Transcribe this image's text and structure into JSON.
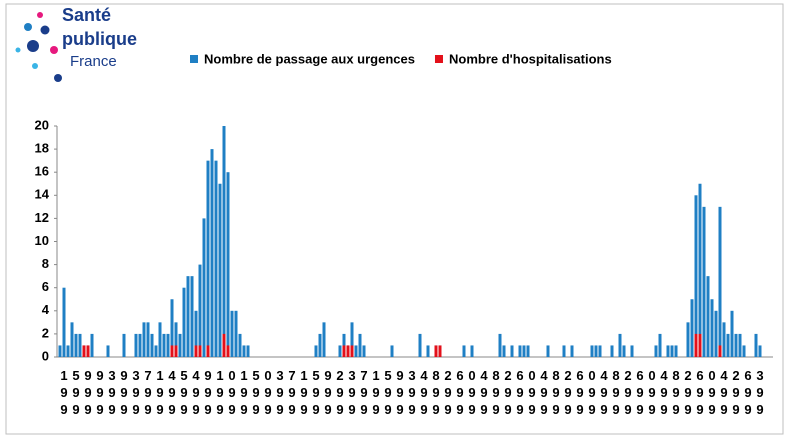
{
  "brand": {
    "line1": "Santé",
    "line2": "publique",
    "line3": "France"
  },
  "chart_data": {
    "type": "bar",
    "overlap": true,
    "series": [
      {
        "name": "Nombre de passage aux urgences",
        "color": "#1f7fc4",
        "values": [
          1,
          6,
          1,
          3,
          2,
          2,
          1,
          1,
          2,
          0,
          0,
          0,
          1,
          0,
          0,
          0,
          2,
          0,
          0,
          2,
          2,
          3,
          3,
          2,
          1,
          3,
          2,
          2,
          5,
          3,
          2,
          6,
          7,
          7,
          4,
          8,
          12,
          17,
          18,
          17,
          15,
          20,
          16,
          4,
          4,
          2,
          1,
          1,
          0,
          0,
          0,
          0,
          0,
          0,
          0,
          0,
          0,
          0,
          0,
          0,
          0,
          0,
          0,
          0,
          1,
          2,
          3,
          0,
          0,
          0,
          1,
          2,
          1,
          3,
          1,
          2,
          1,
          0,
          0,
          0,
          0,
          0,
          0,
          1,
          0,
          0,
          0,
          0,
          0,
          0,
          2,
          0,
          1,
          0,
          1,
          1,
          0,
          0,
          0,
          0,
          0,
          1,
          0,
          1,
          0,
          0,
          0,
          0,
          0,
          0,
          2,
          1,
          0,
          1,
          0,
          1,
          1,
          1,
          0,
          0,
          0,
          0,
          1,
          0,
          0,
          0,
          1,
          0,
          1,
          0,
          0,
          0,
          0,
          1,
          1,
          1,
          0,
          0,
          1,
          0,
          2,
          1,
          0,
          1,
          0,
          0,
          0,
          0,
          0,
          1,
          2,
          0,
          1,
          1,
          1,
          0,
          0,
          3,
          5,
          14,
          15,
          13,
          7,
          5,
          4,
          13,
          3,
          2,
          4,
          2,
          2,
          1,
          0,
          0,
          2,
          1,
          0,
          0
        ]
      },
      {
        "name": "Nombre d'hospitalisations",
        "color": "#e3101a",
        "values": [
          0,
          0,
          0,
          0,
          0,
          0,
          1,
          1,
          0,
          0,
          0,
          0,
          0,
          0,
          0,
          0,
          0,
          0,
          0,
          0,
          0,
          0,
          0,
          0,
          0,
          0,
          0,
          0,
          1,
          1,
          0,
          0,
          0,
          0,
          1,
          1,
          0,
          1,
          0,
          0,
          0,
          2,
          1,
          0,
          0,
          0,
          0,
          0,
          0,
          0,
          0,
          0,
          0,
          0,
          0,
          0,
          0,
          0,
          0,
          0,
          0,
          0,
          0,
          0,
          0,
          0,
          0,
          0,
          0,
          0,
          0,
          1,
          1,
          1,
          0,
          0,
          0,
          0,
          0,
          0,
          0,
          0,
          0,
          0,
          0,
          0,
          0,
          0,
          0,
          0,
          0,
          0,
          0,
          0,
          1,
          1,
          0,
          0,
          0,
          0,
          0,
          0,
          0,
          0,
          0,
          0,
          0,
          0,
          0,
          0,
          0,
          0,
          0,
          0,
          0,
          0,
          0,
          0,
          0,
          0,
          0,
          0,
          0,
          0,
          0,
          0,
          0,
          0,
          0,
          0,
          0,
          0,
          0,
          0,
          0,
          0,
          0,
          0,
          0,
          0,
          0,
          0,
          0,
          0,
          0,
          0,
          0,
          0,
          0,
          0,
          0,
          0,
          0,
          0,
          0,
          0,
          0,
          0,
          0,
          2,
          2,
          0,
          0,
          0,
          0,
          1,
          0,
          0,
          0,
          0,
          0,
          0,
          0,
          0,
          0,
          0,
          0,
          0
        ]
      }
    ],
    "categories": [
      null,
      "199",
      null,
      null,
      "599",
      null,
      null,
      "999",
      null,
      null,
      "999",
      null,
      null,
      "399",
      null,
      null,
      "999",
      null,
      null,
      "399",
      null,
      null,
      "799",
      null,
      null,
      "199",
      null,
      null,
      "499",
      null,
      null,
      "599",
      null,
      null,
      "499",
      null,
      null,
      "999",
      null,
      null,
      "199",
      null,
      null,
      "099",
      null,
      null,
      "199",
      null,
      null,
      "599",
      null,
      null,
      "099",
      null,
      null,
      "399",
      null,
      null,
      "799",
      null,
      null,
      "199",
      null,
      null,
      "599",
      null,
      null,
      "999",
      null,
      null,
      "299",
      null,
      null,
      "399",
      null,
      null,
      "799",
      null,
      null,
      "199",
      null,
      null,
      "599",
      null,
      null,
      "999",
      null,
      null,
      "399",
      null,
      null,
      "499",
      null,
      null,
      "899",
      null,
      null,
      "299",
      null,
      null,
      "699",
      null,
      null,
      "099",
      null,
      null,
      "499",
      null,
      null,
      "899",
      null,
      null,
      "299",
      null,
      null,
      "699",
      null,
      null,
      "099",
      null,
      null,
      "499",
      null,
      null,
      "899",
      null,
      null,
      "299",
      null,
      null,
      "699",
      null,
      null,
      "099",
      null,
      null,
      "499",
      null,
      null,
      "899",
      null,
      null,
      "299",
      null,
      null,
      "699",
      null,
      null,
      "099",
      null,
      null,
      "499",
      null,
      null,
      "899",
      null,
      null,
      "299",
      null,
      null,
      "699",
      null,
      null,
      "099",
      null,
      null,
      "499",
      null,
      null,
      "299",
      null,
      null,
      "699",
      null,
      null,
      "399",
      null,
      null
    ],
    "ylim": [
      0,
      20
    ],
    "yticks": [
      0,
      2,
      4,
      6,
      8,
      10,
      12,
      14,
      16,
      18,
      20
    ]
  }
}
